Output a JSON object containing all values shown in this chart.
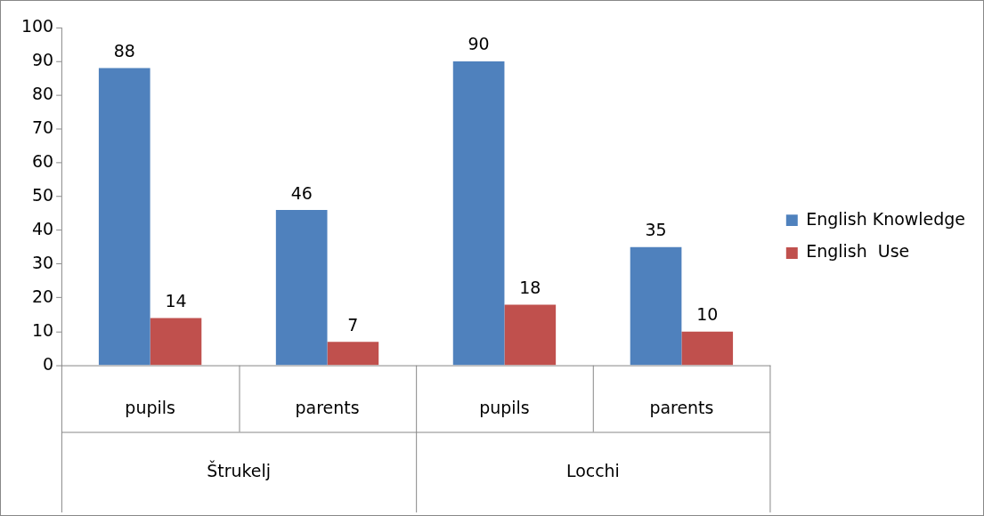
{
  "chart_data": {
    "type": "bar",
    "categories": [
      "pupils",
      "parents",
      "pupils",
      "parents"
    ],
    "annotations": [
      "Štrukelj",
      "Locchi"
    ],
    "series": [
      {
        "name": "English Knowledge",
        "color": "#4f81bd",
        "values": [
          88,
          46,
          90,
          35
        ]
      },
      {
        "name": "English  Use",
        "color": "#c0504d",
        "values": [
          14,
          7,
          18,
          10
        ]
      }
    ],
    "ylim": [
      0,
      100
    ],
    "yticks": [
      0,
      10,
      20,
      30,
      40,
      50,
      60,
      70,
      80,
      90,
      100
    ],
    "grid": false,
    "legend": "right",
    "data_labels": true
  }
}
